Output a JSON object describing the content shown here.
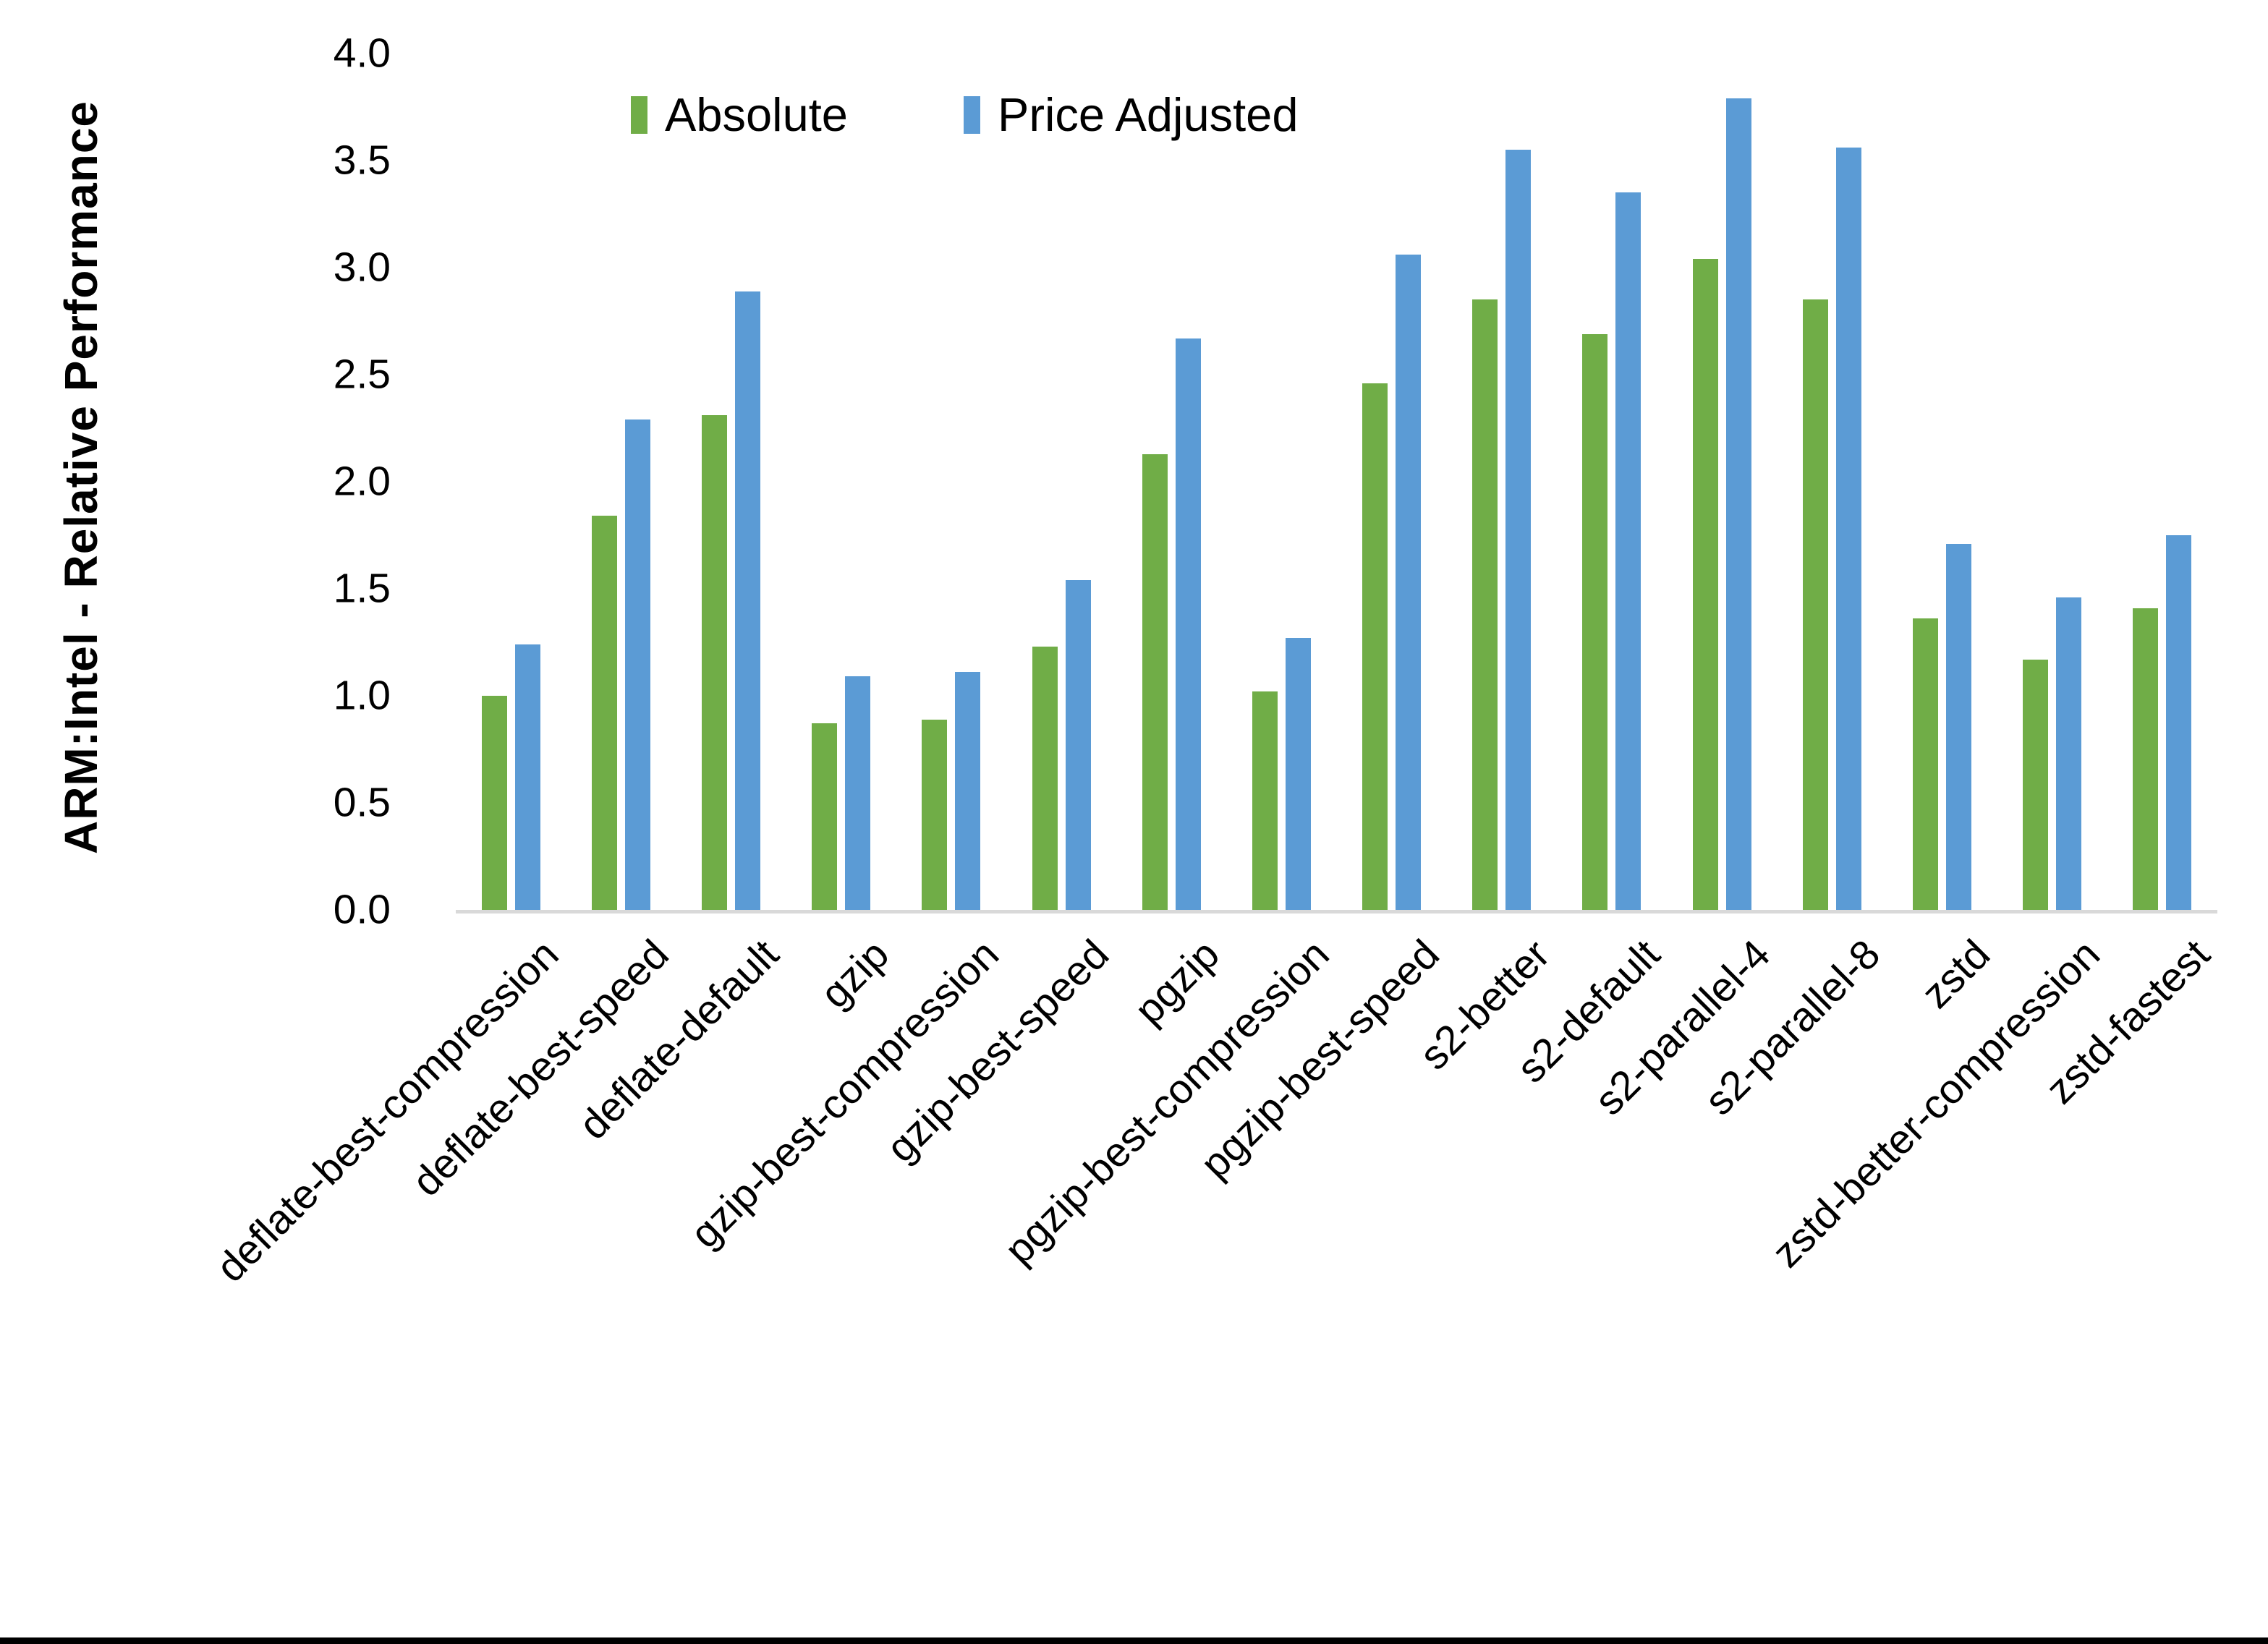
{
  "page": {
    "background": "#ffffff",
    "frame_color": "#000000"
  },
  "chart_data": {
    "type": "bar",
    "title": "",
    "ylabel": "ARM:Intel - Relative Performance",
    "xlabel": "",
    "ylim": [
      0,
      4.0
    ],
    "yticks": [
      "0.0",
      "0.5",
      "1.0",
      "1.5",
      "2.0",
      "2.5",
      "3.0",
      "3.5",
      "4.0"
    ],
    "grid": "off",
    "legend_position": "top",
    "axis_line_color": "#d9d9d9",
    "categories": [
      "deflate-best-compression",
      "deflate-best-speed",
      "deflate-default",
      "gzip",
      "gzip-best-compression",
      "gzip-best-speed",
      "pgzip",
      "pgzip-best-compression",
      "pgzip-best-speed",
      "s2-better",
      "s2-default",
      "s2-parallel-4",
      "s2-parallel-8",
      "zstd",
      "zstd-better-compression",
      "zstd-fastest"
    ],
    "series": [
      {
        "name": "Absolute",
        "color": "#70AD47",
        "values": [
          1.0,
          1.84,
          2.31,
          0.87,
          0.89,
          1.23,
          2.13,
          1.02,
          2.46,
          2.85,
          2.69,
          3.04,
          2.85,
          1.36,
          1.17,
          1.41
        ]
      },
      {
        "name": "Price Adjusted",
        "color": "#5B9BD5",
        "values": [
          1.24,
          2.29,
          2.89,
          1.09,
          1.11,
          1.54,
          2.67,
          1.27,
          3.06,
          3.55,
          3.35,
          3.79,
          3.56,
          1.71,
          1.46,
          1.75
        ]
      }
    ]
  }
}
